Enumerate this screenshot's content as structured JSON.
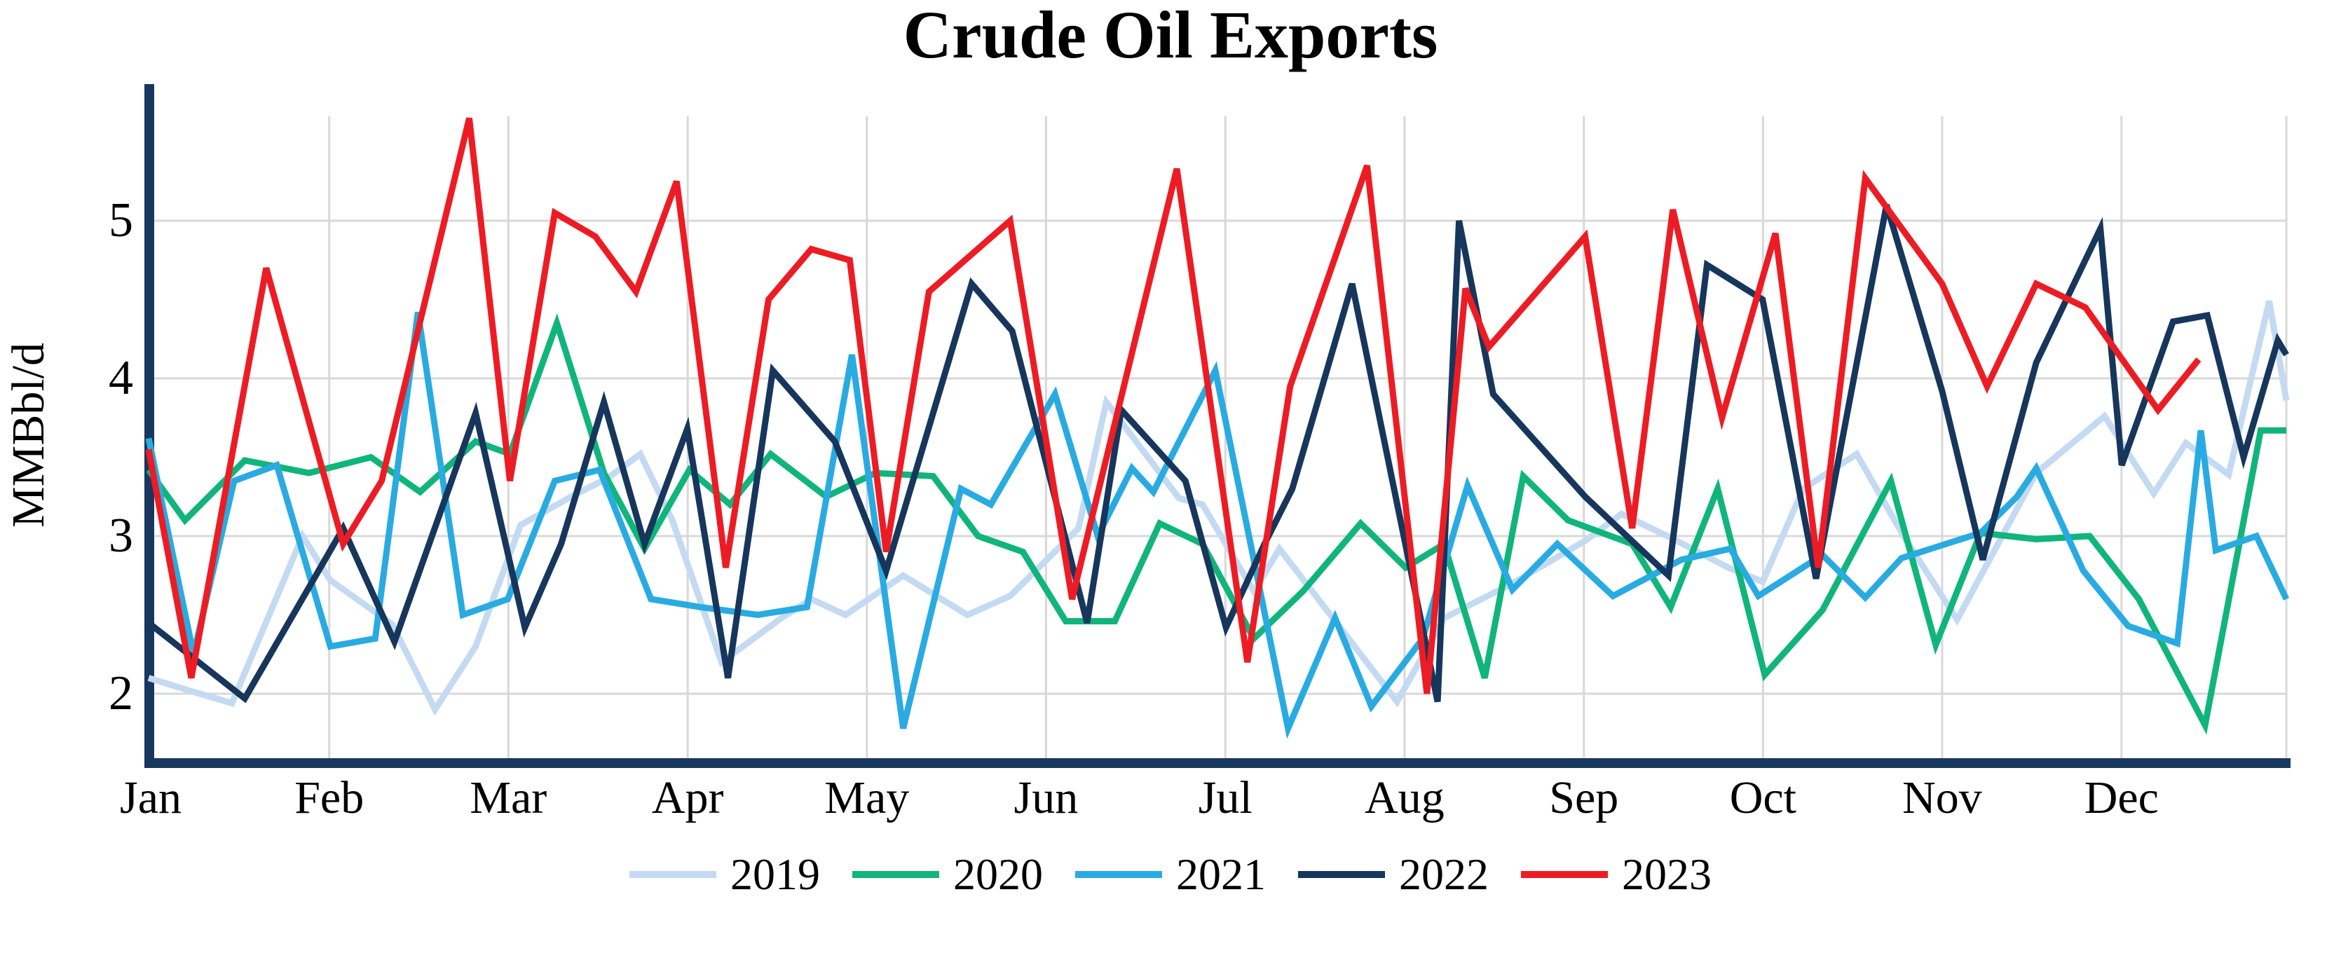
{
  "title": "Crude Oil Exports",
  "y_axis": {
    "label": "MMBbl/d",
    "ticks": [
      "2",
      "3",
      "4",
      "5"
    ],
    "tick_values": [
      2,
      3,
      4,
      5
    ]
  },
  "x_axis": {
    "months": [
      "Jan",
      "Feb",
      "Mar",
      "Apr",
      "May",
      "Jun",
      "Jul",
      "Aug",
      "Sep",
      "Oct",
      "Nov",
      "Dec"
    ],
    "month_fractions": [
      0.001,
      0.0845,
      0.1683,
      0.2522,
      0.336,
      0.4198,
      0.5037,
      0.5875,
      0.6714,
      0.7552,
      0.839,
      0.9229
    ]
  },
  "legend": {
    "entries": [
      "2019",
      "2020",
      "2021",
      "2022",
      "2023"
    ]
  },
  "colors": {
    "grid": "#d8d8d8",
    "axis": "#17375e",
    "text": "#000000"
  },
  "chart_data": {
    "type": "line",
    "title": "Crude Oil Exports",
    "xlabel": "",
    "ylabel": "MMBbl/d",
    "ylim": [
      1.55,
      5.75
    ],
    "x_note": "weekly values across one year; x stored as fraction of Jan-Dec span",
    "grid": true,
    "legend_position": "bottom",
    "series": [
      {
        "name": "2019",
        "color": "#c3daf2",
        "points": [
          [
            0,
            2.1
          ],
          [
            0.019,
            2.02
          ],
          [
            0.039,
            1.94
          ],
          [
            0.072,
            3.0
          ],
          [
            0.085,
            2.72
          ],
          [
            0.114,
            2.44
          ],
          [
            0.134,
            1.9
          ],
          [
            0.153,
            2.3
          ],
          [
            0.174,
            3.07
          ],
          [
            0.199,
            3.26
          ],
          [
            0.215,
            3.37
          ],
          [
            0.23,
            3.52
          ],
          [
            0.245,
            3.1
          ],
          [
            0.268,
            2.2
          ],
          [
            0.296,
            2.48
          ],
          [
            0.31,
            2.6
          ],
          [
            0.326,
            2.5
          ],
          [
            0.353,
            2.75
          ],
          [
            0.383,
            2.5
          ],
          [
            0.403,
            2.62
          ],
          [
            0.435,
            3.05
          ],
          [
            0.448,
            3.85
          ],
          [
            0.482,
            3.24
          ],
          [
            0.493,
            3.2
          ],
          [
            0.517,
            2.65
          ],
          [
            0.529,
            2.92
          ],
          [
            0.584,
            1.95
          ],
          [
            0.606,
            2.48
          ],
          [
            0.638,
            2.7
          ],
          [
            0.672,
            2.97
          ],
          [
            0.689,
            3.14
          ],
          [
            0.712,
            2.99
          ],
          [
            0.739,
            2.8
          ],
          [
            0.755,
            2.71
          ],
          [
            0.774,
            3.3
          ],
          [
            0.799,
            3.52
          ],
          [
            0.821,
            3.0
          ],
          [
            0.846,
            2.47
          ],
          [
            0.883,
            3.4
          ],
          [
            0.915,
            3.76
          ],
          [
            0.938,
            3.27
          ],
          [
            0.953,
            3.59
          ],
          [
            0.973,
            3.39
          ],
          [
            0.992,
            4.49
          ],
          [
            1,
            3.86
          ]
        ]
      },
      {
        "name": "2020",
        "color": "#10b57c",
        "points": [
          [
            0,
            3.42
          ],
          [
            0.017,
            3.1
          ],
          [
            0.045,
            3.48
          ],
          [
            0.075,
            3.4
          ],
          [
            0.104,
            3.5
          ],
          [
            0.127,
            3.28
          ],
          [
            0.153,
            3.6
          ],
          [
            0.169,
            3.52
          ],
          [
            0.191,
            4.35
          ],
          [
            0.213,
            3.4
          ],
          [
            0.232,
            2.92
          ],
          [
            0.253,
            3.42
          ],
          [
            0.272,
            3.2
          ],
          [
            0.291,
            3.52
          ],
          [
            0.317,
            3.25
          ],
          [
            0.34,
            3.4
          ],
          [
            0.367,
            3.38
          ],
          [
            0.388,
            3.0
          ],
          [
            0.409,
            2.9
          ],
          [
            0.429,
            2.46
          ],
          [
            0.452,
            2.46
          ],
          [
            0.473,
            3.08
          ],
          [
            0.493,
            2.95
          ],
          [
            0.517,
            2.35
          ],
          [
            0.54,
            2.65
          ],
          [
            0.567,
            3.08
          ],
          [
            0.588,
            2.8
          ],
          [
            0.606,
            2.95
          ],
          [
            0.625,
            2.1
          ],
          [
            0.643,
            3.38
          ],
          [
            0.664,
            3.1
          ],
          [
            0.694,
            2.95
          ],
          [
            0.712,
            2.55
          ],
          [
            0.734,
            3.3
          ],
          [
            0.756,
            2.12
          ],
          [
            0.783,
            2.53
          ],
          [
            0.815,
            3.35
          ],
          [
            0.836,
            2.31
          ],
          [
            0.857,
            3.02
          ],
          [
            0.883,
            2.98
          ],
          [
            0.908,
            3.0
          ],
          [
            0.931,
            2.6
          ],
          [
            0.962,
            1.8
          ],
          [
            0.988,
            3.67
          ],
          [
            1,
            3.67
          ]
        ]
      },
      {
        "name": "2021",
        "color": "#29abe2",
        "points": [
          [
            0,
            3.62
          ],
          [
            0.021,
            2.25
          ],
          [
            0.04,
            3.35
          ],
          [
            0.06,
            3.45
          ],
          [
            0.085,
            2.3
          ],
          [
            0.106,
            2.35
          ],
          [
            0.126,
            4.42
          ],
          [
            0.147,
            2.5
          ],
          [
            0.168,
            2.6
          ],
          [
            0.19,
            3.35
          ],
          [
            0.211,
            3.42
          ],
          [
            0.235,
            2.6
          ],
          [
            0.258,
            2.55
          ],
          [
            0.285,
            2.5
          ],
          [
            0.308,
            2.55
          ],
          [
            0.329,
            4.15
          ],
          [
            0.353,
            1.78
          ],
          [
            0.38,
            3.3
          ],
          [
            0.394,
            3.2
          ],
          [
            0.424,
            3.9
          ],
          [
            0.444,
            3.0
          ],
          [
            0.46,
            3.43
          ],
          [
            0.47,
            3.28
          ],
          [
            0.499,
            4.05
          ],
          [
            0.533,
            1.78
          ],
          [
            0.555,
            2.48
          ],
          [
            0.572,
            1.92
          ],
          [
            0.596,
            2.35
          ],
          [
            0.617,
            3.32
          ],
          [
            0.638,
            2.66
          ],
          [
            0.659,
            2.95
          ],
          [
            0.685,
            2.62
          ],
          [
            0.717,
            2.85
          ],
          [
            0.74,
            2.92
          ],
          [
            0.753,
            2.62
          ],
          [
            0.783,
            2.88
          ],
          [
            0.803,
            2.61
          ],
          [
            0.82,
            2.86
          ],
          [
            0.857,
            3.02
          ],
          [
            0.874,
            3.25
          ],
          [
            0.883,
            3.43
          ],
          [
            0.905,
            2.78
          ],
          [
            0.926,
            2.43
          ],
          [
            0.949,
            2.32
          ],
          [
            0.96,
            3.67
          ],
          [
            0.967,
            2.91
          ],
          [
            0.986,
            3.0
          ],
          [
            1,
            2.6
          ]
        ]
      },
      {
        "name": "2022",
        "color": "#16365c",
        "points": [
          [
            0,
            2.45
          ],
          [
            0.045,
            1.97
          ],
          [
            0.091,
            3.05
          ],
          [
            0.115,
            2.33
          ],
          [
            0.153,
            3.78
          ],
          [
            0.176,
            2.42
          ],
          [
            0.193,
            2.95
          ],
          [
            0.213,
            3.85
          ],
          [
            0.232,
            2.95
          ],
          [
            0.252,
            3.68
          ],
          [
            0.271,
            2.1
          ],
          [
            0.292,
            4.05
          ],
          [
            0.321,
            3.6
          ],
          [
            0.345,
            2.78
          ],
          [
            0.385,
            4.6
          ],
          [
            0.404,
            4.3
          ],
          [
            0.439,
            2.45
          ],
          [
            0.455,
            3.8
          ],
          [
            0.485,
            3.35
          ],
          [
            0.504,
            2.42
          ],
          [
            0.522,
            2.95
          ],
          [
            0.535,
            3.3
          ],
          [
            0.563,
            4.6
          ],
          [
            0.603,
            1.95
          ],
          [
            0.613,
            5.0
          ],
          [
            0.629,
            3.9
          ],
          [
            0.672,
            3.25
          ],
          [
            0.711,
            2.75
          ],
          [
            0.729,
            4.72
          ],
          [
            0.755,
            4.5
          ],
          [
            0.78,
            2.73
          ],
          [
            0.813,
            5.1
          ],
          [
            0.839,
            3.92
          ],
          [
            0.858,
            2.85
          ],
          [
            0.883,
            4.1
          ],
          [
            0.913,
            4.95
          ],
          [
            0.923,
            3.45
          ],
          [
            0.947,
            4.36
          ],
          [
            0.963,
            4.4
          ],
          [
            0.98,
            3.5
          ],
          [
            0.996,
            4.24
          ],
          [
            1,
            4.15
          ]
        ]
      },
      {
        "name": "2023",
        "color": "#ed1c24",
        "points": [
          [
            0,
            3.55
          ],
          [
            0.02,
            2.1
          ],
          [
            0.055,
            4.7
          ],
          [
            0.091,
            2.95
          ],
          [
            0.109,
            3.35
          ],
          [
            0.15,
            5.65
          ],
          [
            0.169,
            3.35
          ],
          [
            0.19,
            5.05
          ],
          [
            0.209,
            4.9
          ],
          [
            0.228,
            4.55
          ],
          [
            0.247,
            5.25
          ],
          [
            0.27,
            2.8
          ],
          [
            0.29,
            4.5
          ],
          [
            0.31,
            4.82
          ],
          [
            0.328,
            4.75
          ],
          [
            0.345,
            2.9
          ],
          [
            0.365,
            4.55
          ],
          [
            0.403,
            5.0
          ],
          [
            0.432,
            2.6
          ],
          [
            0.481,
            5.33
          ],
          [
            0.514,
            2.2
          ],
          [
            0.534,
            3.95
          ],
          [
            0.57,
            5.35
          ],
          [
            0.598,
            2.0
          ],
          [
            0.616,
            4.57
          ],
          [
            0.627,
            4.2
          ],
          [
            0.672,
            4.9
          ],
          [
            0.694,
            3.05
          ],
          [
            0.713,
            5.07
          ],
          [
            0.736,
            3.75
          ],
          [
            0.761,
            4.92
          ],
          [
            0.781,
            2.8
          ],
          [
            0.803,
            5.27
          ],
          [
            0.839,
            4.6
          ],
          [
            0.86,
            3.95
          ],
          [
            0.883,
            4.6
          ],
          [
            0.906,
            4.45
          ],
          [
            0.94,
            3.8
          ],
          [
            0.959,
            4.12
          ]
        ]
      }
    ]
  }
}
